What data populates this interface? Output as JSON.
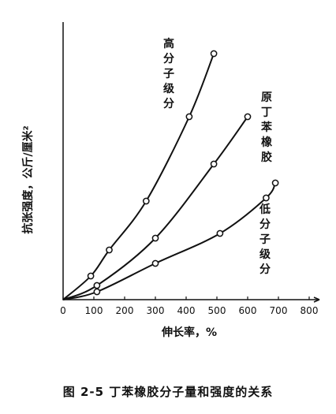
{
  "chart_data": {
    "type": "scatter",
    "xlabel": "伸长率，%",
    "ylabel": "抗张强度，公斤/厘米²",
    "xlim": [
      0,
      800
    ],
    "xticks": [
      0,
      100,
      200,
      300,
      400,
      500,
      600,
      700,
      800
    ],
    "x_tick_labels": [
      "0",
      "100",
      "200",
      "300",
      "400",
      "500",
      "600",
      "700",
      "800"
    ],
    "series": [
      {
        "name": "高分子级分",
        "label_chars": [
          "高",
          "分",
          "子",
          "级",
          "分"
        ],
        "x": [
          90,
          150,
          270,
          410,
          490
        ],
        "y": [
          30,
          63,
          125,
          232,
          312
        ]
      },
      {
        "name": "原丁苯橡胶",
        "label_chars": [
          "原",
          "丁",
          "苯",
          "橡",
          "胶"
        ],
        "x": [
          110,
          300,
          490,
          600
        ],
        "y": [
          18,
          78,
          172,
          232
        ]
      },
      {
        "name": "低分子级分",
        "label_chars": [
          "低",
          "分",
          "子",
          "级",
          "分"
        ],
        "x": [
          110,
          300,
          510,
          660,
          690
        ],
        "y": [
          10,
          46,
          84,
          129,
          148
        ]
      }
    ]
  },
  "caption": "图 2-5  丁苯橡胶分子量和强度的关系"
}
